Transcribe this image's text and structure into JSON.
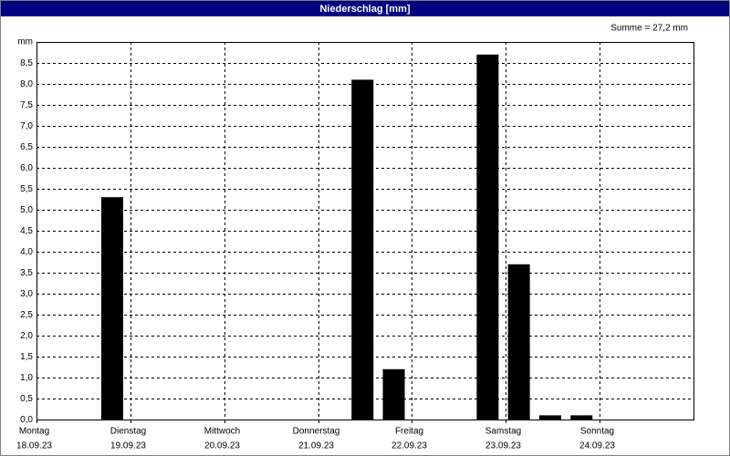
{
  "chart_data": {
    "type": "bar",
    "title": "Niederschlag [mm]",
    "annotation": "Summe = 27,2 mm",
    "y_label": "mm",
    "categories": [
      null,
      null,
      null,
      null,
      null,
      null,
      null,
      null,
      null,
      null,
      null,
      null,
      null,
      null,
      null,
      null,
      null,
      null,
      null,
      null,
      null
    ],
    "values": [
      0,
      0,
      5.3,
      0,
      0,
      0,
      0,
      0,
      0,
      0,
      8.1,
      1.2,
      0,
      0,
      8.7,
      3.7,
      0.1,
      0.1,
      0,
      0,
      0
    ],
    "color": "#000000",
    "days": [
      {
        "day": "Montag",
        "date": "18.09.23"
      },
      {
        "day": "Dienstag",
        "date": "19.09.23"
      },
      {
        "day": "Mittwoch",
        "date": "20.09.23"
      },
      {
        "day": "Donnerstag",
        "date": "21.09.23"
      },
      {
        "day": "Freitag",
        "date": "22.09.23"
      },
      {
        "day": "Samstag",
        "date": "23.09.23"
      },
      {
        "day": "Sonntag",
        "date": "24.09.23"
      }
    ],
    "ylim": [
      0,
      9
    ],
    "yticks": [
      {
        "value": 0,
        "label": "0,0"
      },
      {
        "value": 0.5,
        "label": "0,5"
      },
      {
        "value": 1,
        "label": "1,0"
      },
      {
        "value": 1.5,
        "label": "1,5"
      },
      {
        "value": 2,
        "label": "2,0"
      },
      {
        "value": 2.5,
        "label": "2,5"
      },
      {
        "value": 3,
        "label": "3,0"
      },
      {
        "value": 3.5,
        "label": "3,5"
      },
      {
        "value": 4,
        "label": "4,0"
      },
      {
        "value": 4.5,
        "label": "4,5"
      },
      {
        "value": 5,
        "label": "5,0"
      },
      {
        "value": 5.5,
        "label": "5,5"
      },
      {
        "value": 6,
        "label": "6,0"
      },
      {
        "value": 6.5,
        "label": "6,5"
      },
      {
        "value": 7,
        "label": "7,0"
      },
      {
        "value": 7.5,
        "label": "7,5"
      },
      {
        "value": 8,
        "label": "8,0"
      },
      {
        "value": 8.5,
        "label": "8,5"
      }
    ],
    "grid": true
  }
}
